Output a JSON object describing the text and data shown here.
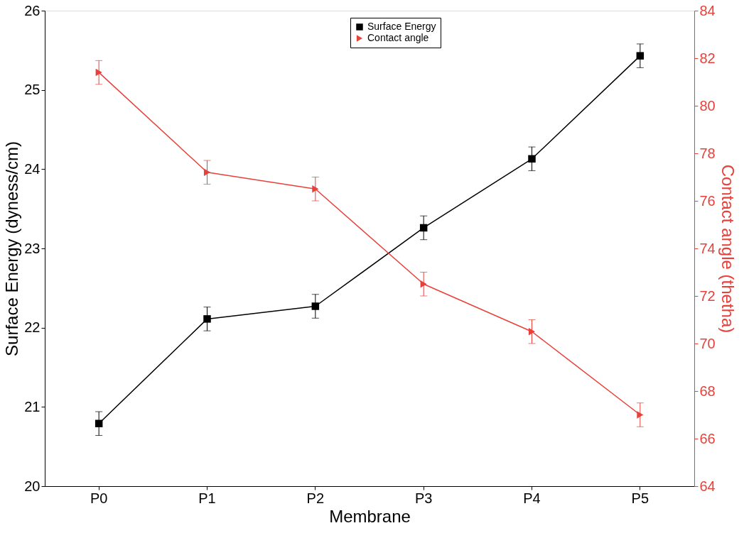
{
  "chart_data": {
    "type": "line",
    "xlabel": "Membrane",
    "ylabel": "Surface Energy (dyness/cm)",
    "y2label": "Contact angle (thetha)",
    "categories": [
      "P0",
      "P1",
      "P2",
      "P3",
      "P4",
      "P5"
    ],
    "series": [
      {
        "name": "Surface Energy",
        "color": "#000000",
        "marker": "square",
        "values": [
          20.79,
          22.11,
          22.27,
          23.26,
          24.13,
          25.43
        ],
        "errors": [
          0.15,
          0.15,
          0.15,
          0.15,
          0.15,
          0.15
        ]
      },
      {
        "name": "Contact angle",
        "color": "#e8403a",
        "marker": "triangle",
        "axis": "y2",
        "values": [
          81.4,
          77.2,
          76.5,
          72.5,
          70.5,
          67.0
        ],
        "errors": [
          0.5,
          0.5,
          0.5,
          0.5,
          0.5,
          0.5
        ]
      }
    ],
    "ylim": [
      20,
      26
    ],
    "yticks": [
      20,
      21,
      22,
      23,
      24,
      25,
      26
    ],
    "y2lim": [
      64,
      84
    ],
    "y2ticks": [
      64,
      66,
      68,
      70,
      72,
      74,
      76,
      78,
      80,
      82,
      84
    ],
    "legend": "top",
    "grid": false,
    "line_style": "solid"
  }
}
